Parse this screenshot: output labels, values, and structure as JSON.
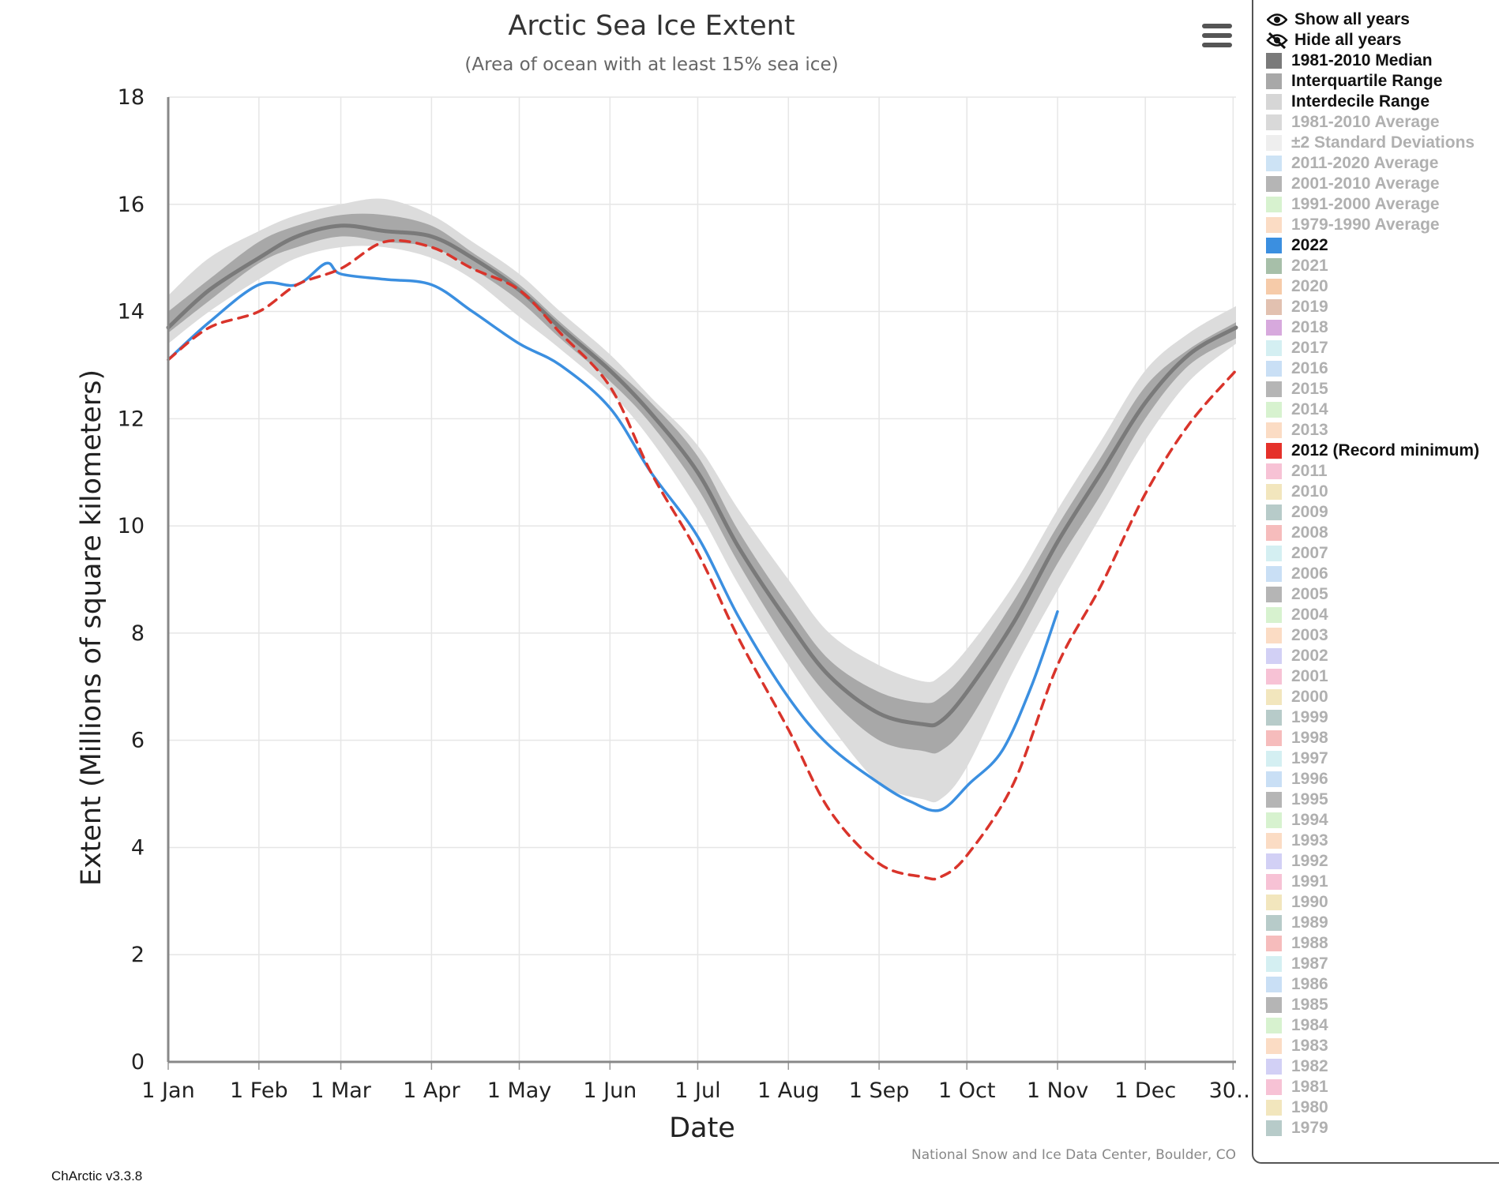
{
  "chart_data": {
    "type": "line",
    "title": "Arctic Sea Ice Extent",
    "subtitle": "(Area of ocean with at least 15% sea ice)",
    "xlabel": "Date",
    "ylabel": "Extent (Millions of square kilometers)",
    "ylim": [
      0,
      18
    ],
    "xlim": [
      1,
      366
    ],
    "y_ticks": [
      0,
      2,
      4,
      6,
      8,
      10,
      12,
      14,
      16,
      18
    ],
    "x_ticks": [
      {
        "day": 1,
        "label": "1 Jan"
      },
      {
        "day": 32,
        "label": "1 Feb"
      },
      {
        "day": 60,
        "label": "1 Mar"
      },
      {
        "day": 91,
        "label": "1 Apr"
      },
      {
        "day": 121,
        "label": "1 May"
      },
      {
        "day": 152,
        "label": "1 Jun"
      },
      {
        "day": 182,
        "label": "1 Jul"
      },
      {
        "day": 213,
        "label": "1 Aug"
      },
      {
        "day": 244,
        "label": "1 Sep"
      },
      {
        "day": 274,
        "label": "1 Oct"
      },
      {
        "day": 305,
        "label": "1 Nov"
      },
      {
        "day": 335,
        "label": "1 Dec"
      },
      {
        "day": 365,
        "label": "30…"
      }
    ],
    "grid": true,
    "legend_position": "right",
    "x": [
      1,
      15,
      32,
      45,
      60,
      75,
      91,
      105,
      121,
      135,
      152,
      166,
      182,
      196,
      213,
      227,
      244,
      259,
      265,
      274,
      290,
      305,
      320,
      335,
      350,
      366
    ],
    "bands": [
      {
        "name": "Interdecile Range",
        "color": "#dcdcdc",
        "low": [
          13.4,
          14.0,
          14.6,
          15.0,
          15.2,
          15.2,
          15.0,
          14.6,
          13.9,
          13.3,
          12.5,
          11.6,
          10.3,
          8.9,
          7.4,
          6.3,
          5.2,
          4.9,
          4.9,
          5.5,
          7.3,
          8.8,
          10.2,
          11.6,
          12.7,
          13.4
        ],
        "high": [
          14.3,
          15.0,
          15.5,
          15.8,
          16.0,
          16.1,
          15.8,
          15.3,
          14.7,
          14.0,
          13.2,
          12.4,
          11.5,
          10.3,
          9.0,
          8.0,
          7.4,
          7.1,
          7.2,
          7.7,
          8.9,
          10.3,
          11.6,
          12.9,
          13.6,
          14.1
        ]
      },
      {
        "name": "Interquartile Range",
        "color": "#a8a8a8",
        "low": [
          13.6,
          14.2,
          14.9,
          15.2,
          15.4,
          15.3,
          15.2,
          14.8,
          14.2,
          13.5,
          12.7,
          11.9,
          10.7,
          9.3,
          7.8,
          6.8,
          6.0,
          5.8,
          5.8,
          6.3,
          7.8,
          9.3,
          10.6,
          12.0,
          13.0,
          13.5
        ],
        "high": [
          14.0,
          14.6,
          15.3,
          15.6,
          15.8,
          15.8,
          15.6,
          15.1,
          14.5,
          13.8,
          13.0,
          12.3,
          11.3,
          9.9,
          8.5,
          7.5,
          6.9,
          6.7,
          6.8,
          7.3,
          8.6,
          10.0,
          11.3,
          12.6,
          13.3,
          13.8
        ]
      }
    ],
    "series": [
      {
        "name": "1981-2010 Median",
        "color": "#7a7a7a",
        "style": "solid",
        "values": [
          13.7,
          14.4,
          15.0,
          15.4,
          15.6,
          15.5,
          15.4,
          15.0,
          14.4,
          13.7,
          12.9,
          12.1,
          11.0,
          9.6,
          8.2,
          7.2,
          6.5,
          6.3,
          6.35,
          6.9,
          8.2,
          9.7,
          11.0,
          12.3,
          13.2,
          13.7
        ]
      },
      {
        "name": "2022",
        "color": "#3b8fe0",
        "style": "solid",
        "x": [
          1,
          15,
          32,
          45,
          55,
          60,
          75,
          91,
          105,
          121,
          135,
          152,
          166,
          182,
          196,
          213,
          227,
          244,
          255,
          265,
          275,
          286,
          296,
          305
        ],
        "values": [
          13.1,
          13.8,
          14.5,
          14.5,
          14.9,
          14.7,
          14.6,
          14.5,
          14.0,
          13.4,
          13.0,
          12.2,
          11.0,
          9.8,
          8.3,
          6.8,
          5.9,
          5.2,
          4.85,
          4.7,
          5.2,
          5.8,
          7.0,
          8.4
        ]
      },
      {
        "name": "2012 (Record minimum)",
        "color": "#d9342b",
        "style": "dashed",
        "values": [
          13.1,
          13.7,
          14.0,
          14.5,
          14.8,
          15.3,
          15.2,
          14.8,
          14.4,
          13.6,
          12.6,
          11.0,
          9.5,
          7.9,
          6.2,
          4.7,
          3.7,
          3.45,
          3.45,
          3.85,
          5.2,
          7.4,
          8.9,
          10.6,
          11.9,
          12.9
        ]
      }
    ]
  },
  "footer": {
    "credit": "National Snow and Ice Data Center, Boulder, CO",
    "version": "ChArctic v3.3.8"
  },
  "menu": {
    "icon": "hamburger-menu-icon"
  },
  "legend": {
    "show_all": {
      "label": "Show all years",
      "icon": "eye-icon"
    },
    "hide_all": {
      "label": "Hide all years",
      "icon": "eye-slash-icon"
    },
    "items": [
      {
        "label": "1981-2010 Median",
        "color": "#7a7a7a",
        "on": true
      },
      {
        "label": "Interquartile Range",
        "color": "#a8a8a8",
        "on": true
      },
      {
        "label": "Interdecile Range",
        "color": "#d6d6d6",
        "on": true
      },
      {
        "label": "1981-2010 Average",
        "color": "#d9d9d9",
        "on": false
      },
      {
        "label": "±2 Standard Deviations",
        "color": "#eeeeee",
        "on": false
      },
      {
        "label": "2011-2020 Average",
        "color": "#cde3f5",
        "on": false
      },
      {
        "label": "2001-2010 Average",
        "color": "#b5b5b5",
        "on": false
      },
      {
        "label": "1991-2000 Average",
        "color": "#d7f2cf",
        "on": false
      },
      {
        "label": "1979-1990 Average",
        "color": "#fbdcc4",
        "on": false
      },
      {
        "label": "2022",
        "color": "#3b8fe0",
        "on": true
      },
      {
        "label": "2021",
        "color": "#a7bfa9",
        "on": false
      },
      {
        "label": "2020",
        "color": "#f6cba9",
        "on": false
      },
      {
        "label": "2019",
        "color": "#e2c1b0",
        "on": false
      },
      {
        "label": "2018",
        "color": "#d7a9dd",
        "on": false
      },
      {
        "label": "2017",
        "color": "#d4eff2",
        "on": false
      },
      {
        "label": "2016",
        "color": "#c9dff5",
        "on": false
      },
      {
        "label": "2015",
        "color": "#b5b5b5",
        "on": false
      },
      {
        "label": "2014",
        "color": "#d7f2cf",
        "on": false
      },
      {
        "label": "2013",
        "color": "#fbdcc4",
        "on": false
      },
      {
        "label": "2012 (Record minimum)",
        "color": "#e5312a",
        "on": true
      },
      {
        "label": "2011",
        "color": "#f7c2d5",
        "on": false
      },
      {
        "label": "2010",
        "color": "#f2e6bd",
        "on": false
      },
      {
        "label": "2009",
        "color": "#b7cbc9",
        "on": false
      },
      {
        "label": "2008",
        "color": "#f6bcbc",
        "on": false
      },
      {
        "label": "2007",
        "color": "#d4eff2",
        "on": false
      },
      {
        "label": "2006",
        "color": "#c9dff5",
        "on": false
      },
      {
        "label": "2005",
        "color": "#b5b5b5",
        "on": false
      },
      {
        "label": "2004",
        "color": "#d7f2cf",
        "on": false
      },
      {
        "label": "2003",
        "color": "#fbdcc4",
        "on": false
      },
      {
        "label": "2002",
        "color": "#d2d0f5",
        "on": false
      },
      {
        "label": "2001",
        "color": "#f7c2d5",
        "on": false
      },
      {
        "label": "2000",
        "color": "#f2e6bd",
        "on": false
      },
      {
        "label": "1999",
        "color": "#b7cbc9",
        "on": false
      },
      {
        "label": "1998",
        "color": "#f6bcbc",
        "on": false
      },
      {
        "label": "1997",
        "color": "#d4eff2",
        "on": false
      },
      {
        "label": "1996",
        "color": "#c9dff5",
        "on": false
      },
      {
        "label": "1995",
        "color": "#b5b5b5",
        "on": false
      },
      {
        "label": "1994",
        "color": "#d7f2cf",
        "on": false
      },
      {
        "label": "1993",
        "color": "#fbdcc4",
        "on": false
      },
      {
        "label": "1992",
        "color": "#d2d0f5",
        "on": false
      },
      {
        "label": "1991",
        "color": "#f7c2d5",
        "on": false
      },
      {
        "label": "1990",
        "color": "#f2e6bd",
        "on": false
      },
      {
        "label": "1989",
        "color": "#b7cbc9",
        "on": false
      },
      {
        "label": "1988",
        "color": "#f6bcbc",
        "on": false
      },
      {
        "label": "1987",
        "color": "#d4eff2",
        "on": false
      },
      {
        "label": "1986",
        "color": "#c9dff5",
        "on": false
      },
      {
        "label": "1985",
        "color": "#b5b5b5",
        "on": false
      },
      {
        "label": "1984",
        "color": "#d7f2cf",
        "on": false
      },
      {
        "label": "1983",
        "color": "#fbdcc4",
        "on": false
      },
      {
        "label": "1982",
        "color": "#d2d0f5",
        "on": false
      },
      {
        "label": "1981",
        "color": "#f7c2d5",
        "on": false
      },
      {
        "label": "1980",
        "color": "#f2e6bd",
        "on": false
      },
      {
        "label": "1979",
        "color": "#b7cbc9",
        "on": false
      }
    ]
  }
}
